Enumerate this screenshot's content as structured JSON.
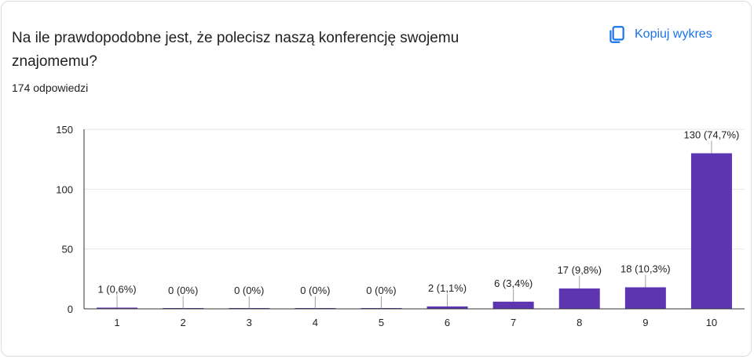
{
  "question": {
    "title": "Na ile prawdopodobne jest, że polecisz naszą konferencję swojemu znajomemu?",
    "response_count": "174 odpowiedzi"
  },
  "toolbar": {
    "copy_label": "Kopiuj wykres",
    "copy_icon": "copy-icon"
  },
  "colors": {
    "bar": "#5e35b1",
    "accent": "#1a73e8",
    "grid": "#e6e6e6",
    "axis": "#333333"
  },
  "chart_data": {
    "type": "bar",
    "categories": [
      "1",
      "2",
      "3",
      "4",
      "5",
      "6",
      "7",
      "8",
      "9",
      "10"
    ],
    "values": [
      1,
      0,
      0,
      0,
      0,
      2,
      6,
      17,
      18,
      130
    ],
    "data_labels": [
      "1 (0,6%)",
      "0 (0%)",
      "0 (0%)",
      "0 (0%)",
      "0 (0%)",
      "2 (1,1%)",
      "6 (3,4%)",
      "17 (9,8%)",
      "18 (10,3%)",
      "130 (74,7%)"
    ],
    "ylim": [
      0,
      150
    ],
    "yticks": [
      0,
      50,
      100,
      150
    ],
    "grid": true,
    "legend": "none",
    "title": "",
    "xlabel": "",
    "ylabel": ""
  }
}
